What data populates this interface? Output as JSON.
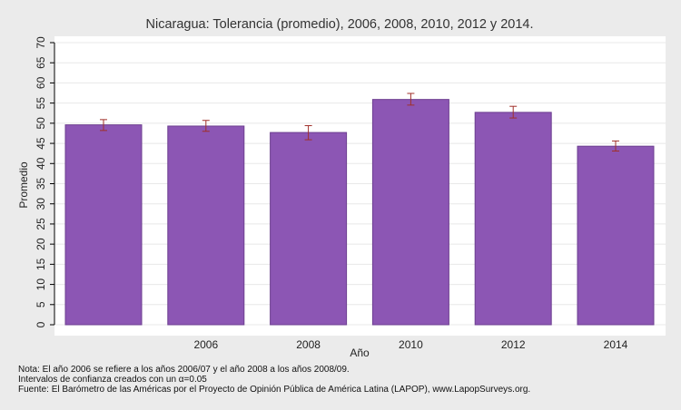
{
  "colors": {
    "background": "#ebebeb",
    "plot_area": "#ffffff",
    "bar": "#8c56b4",
    "bar_edge": "#6d3f90",
    "error_bar": "#a0302a",
    "grid": "#e8e8e8"
  },
  "chart_data": {
    "type": "bar",
    "title": "Nicaragua: Tolerancia (promedio), 2006, 2008, 2010, 2012 y 2014.",
    "xlabel": "Año",
    "ylabel": "Promedio",
    "ylim": [
      0,
      70
    ],
    "yticks": [
      0,
      5,
      10,
      15,
      20,
      25,
      30,
      35,
      40,
      45,
      50,
      55,
      60,
      65,
      70
    ],
    "grid": true,
    "categories": [
      "",
      "2006",
      "2008",
      "2010",
      "2012",
      "2014"
    ],
    "values": [
      49.6,
      49.3,
      47.7,
      55.9,
      52.7,
      44.3
    ],
    "error_low": [
      48.2,
      48.0,
      45.9,
      54.5,
      51.3,
      43.1
    ],
    "error_high": [
      50.9,
      50.7,
      49.4,
      57.4,
      54.2,
      45.6
    ]
  },
  "notes": [
    "Nota: El año 2006 se refiere a los años 2006/07 y el año 2008 a los años 2008/09.",
    "Intervalos de confianza creados con un α=0.05",
    "Fuente: El Barómetro de las Américas por el Proyecto de Opinión Pública de América Latina (LAPOP), www.LapopSurveys.org."
  ]
}
